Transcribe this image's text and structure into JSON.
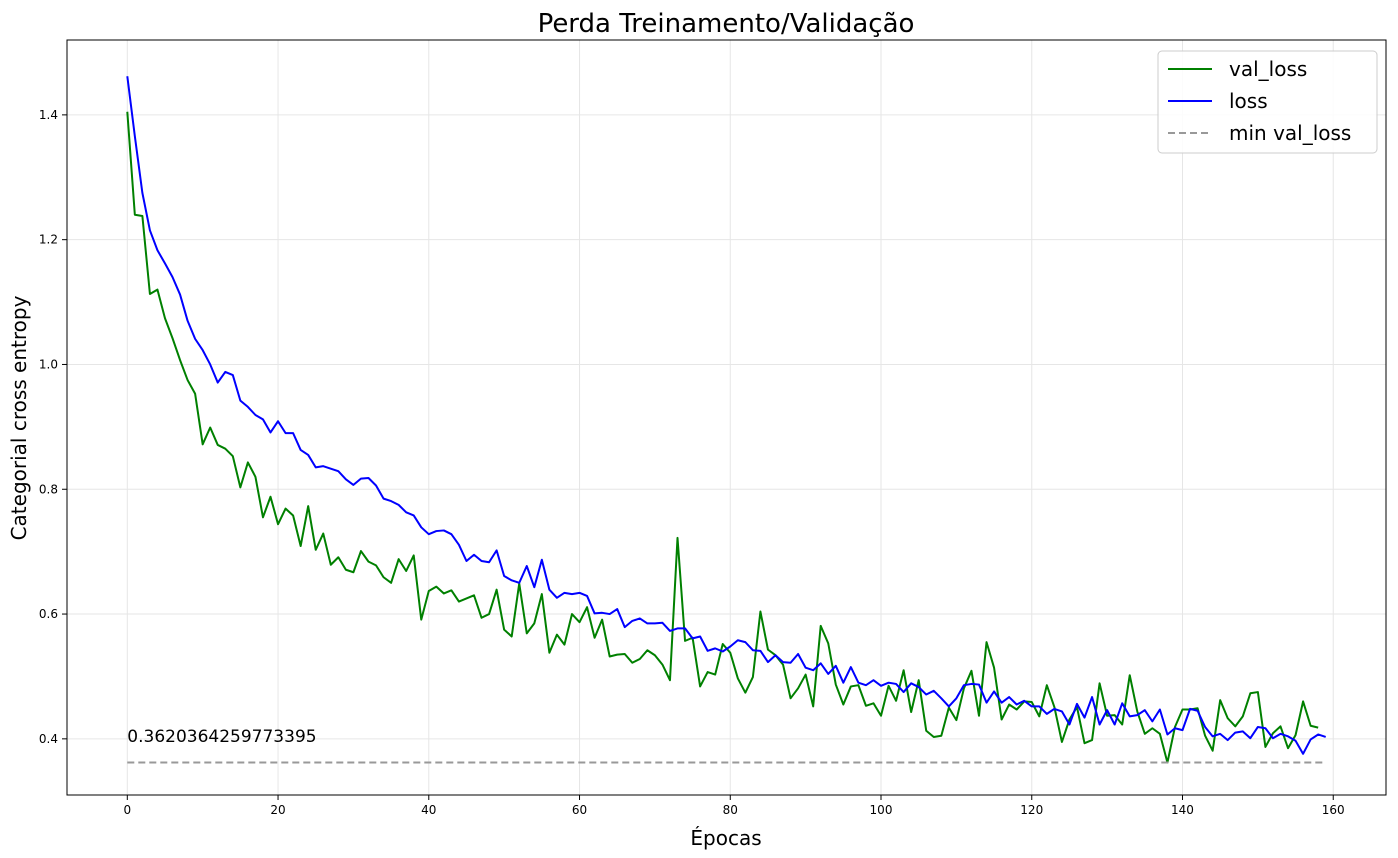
{
  "chart_data": {
    "type": "line",
    "title": "Perda Treinamento/Validação",
    "xlabel": "Épocas",
    "ylabel": "Categorial cross entropy",
    "xlim": [
      -8,
      167
    ],
    "ylim": [
      0.31,
      1.52
    ],
    "xticks": [
      0,
      20,
      40,
      60,
      80,
      100,
      120,
      140,
      160
    ],
    "yticks": [
      0.4,
      0.6,
      0.8,
      1.0,
      1.2,
      1.4
    ],
    "grid": true,
    "legend_position": "top-right",
    "annotation": {
      "text": "0.3620364259773395",
      "x": 0,
      "y": 0.395
    },
    "series": [
      {
        "name": "val_loss",
        "color": "#008000",
        "style": "solid",
        "values": [
          1.405,
          1.24,
          1.238,
          1.113,
          1.12,
          1.074,
          1.042,
          1.007,
          0.975,
          0.953,
          0.872,
          0.899,
          0.871,
          0.865,
          0.853,
          0.803,
          0.843,
          0.82,
          0.755,
          0.788,
          0.744,
          0.769,
          0.758,
          0.709,
          0.773,
          0.703,
          0.729,
          0.679,
          0.691,
          0.671,
          0.667,
          0.701,
          0.684,
          0.678,
          0.659,
          0.65,
          0.688,
          0.669,
          0.694,
          0.591,
          0.637,
          0.644,
          0.633,
          0.638,
          0.62,
          0.625,
          0.63,
          0.594,
          0.6,
          0.639,
          0.575,
          0.564,
          0.649,
          0.569,
          0.585,
          0.632,
          0.538,
          0.567,
          0.551,
          0.6,
          0.587,
          0.611,
          0.562,
          0.591,
          0.532,
          0.535,
          0.536,
          0.522,
          0.528,
          0.542,
          0.534,
          0.519,
          0.494,
          0.722,
          0.557,
          0.562,
          0.484,
          0.507,
          0.503,
          0.552,
          0.538,
          0.497,
          0.474,
          0.499,
          0.604,
          0.543,
          0.534,
          0.519,
          0.465,
          0.481,
          0.503,
          0.452,
          0.581,
          0.553,
          0.487,
          0.455,
          0.484,
          0.486,
          0.453,
          0.457,
          0.437,
          0.485,
          0.461,
          0.51,
          0.443,
          0.494,
          0.413,
          0.403,
          0.405,
          0.45,
          0.43,
          0.481,
          0.509,
          0.437,
          0.555,
          0.514,
          0.431,
          0.455,
          0.447,
          0.46,
          0.459,
          0.436,
          0.486,
          0.451,
          0.395,
          0.431,
          0.451,
          0.393,
          0.398,
          0.489,
          0.437,
          0.438,
          0.423,
          0.502,
          0.444,
          0.408,
          0.417,
          0.408,
          0.362,
          0.419,
          0.447,
          0.447,
          0.449,
          0.405,
          0.381,
          0.462,
          0.433,
          0.42,
          0.436,
          0.473,
          0.475,
          0.387,
          0.409,
          0.42,
          0.385,
          0.406,
          0.46,
          0.421,
          0.418
        ]
      },
      {
        "name": "loss",
        "color": "#0000ff",
        "style": "solid",
        "values": [
          1.462,
          1.366,
          1.275,
          1.215,
          1.183,
          1.162,
          1.14,
          1.112,
          1.07,
          1.041,
          1.023,
          1.0,
          0.971,
          0.988,
          0.983,
          0.942,
          0.932,
          0.919,
          0.912,
          0.891,
          0.909,
          0.89,
          0.89,
          0.863,
          0.855,
          0.835,
          0.837,
          0.833,
          0.829,
          0.816,
          0.807,
          0.817,
          0.818,
          0.806,
          0.785,
          0.781,
          0.775,
          0.763,
          0.758,
          0.739,
          0.728,
          0.733,
          0.734,
          0.728,
          0.711,
          0.685,
          0.695,
          0.685,
          0.683,
          0.702,
          0.661,
          0.654,
          0.65,
          0.677,
          0.643,
          0.687,
          0.639,
          0.626,
          0.634,
          0.632,
          0.634,
          0.629,
          0.601,
          0.602,
          0.6,
          0.608,
          0.579,
          0.589,
          0.593,
          0.585,
          0.585,
          0.586,
          0.573,
          0.577,
          0.577,
          0.561,
          0.564,
          0.541,
          0.545,
          0.54,
          0.548,
          0.558,
          0.555,
          0.542,
          0.541,
          0.523,
          0.534,
          0.523,
          0.522,
          0.536,
          0.514,
          0.51,
          0.521,
          0.504,
          0.517,
          0.49,
          0.515,
          0.49,
          0.486,
          0.494,
          0.485,
          0.49,
          0.488,
          0.475,
          0.489,
          0.483,
          0.471,
          0.477,
          0.465,
          0.452,
          0.465,
          0.486,
          0.488,
          0.487,
          0.458,
          0.476,
          0.458,
          0.467,
          0.455,
          0.461,
          0.452,
          0.452,
          0.44,
          0.448,
          0.444,
          0.423,
          0.456,
          0.434,
          0.467,
          0.423,
          0.446,
          0.423,
          0.457,
          0.436,
          0.438,
          0.446,
          0.428,
          0.447,
          0.407,
          0.417,
          0.414,
          0.448,
          0.445,
          0.419,
          0.404,
          0.408,
          0.398,
          0.41,
          0.412,
          0.401,
          0.419,
          0.417,
          0.401,
          0.408,
          0.404,
          0.397,
          0.376,
          0.399,
          0.407,
          0.403
        ]
      },
      {
        "name": "min val_loss",
        "color": "#999999",
        "style": "dashed",
        "constant": 0.3620364259773395,
        "x_range": [
          0,
          159
        ]
      }
    ]
  }
}
